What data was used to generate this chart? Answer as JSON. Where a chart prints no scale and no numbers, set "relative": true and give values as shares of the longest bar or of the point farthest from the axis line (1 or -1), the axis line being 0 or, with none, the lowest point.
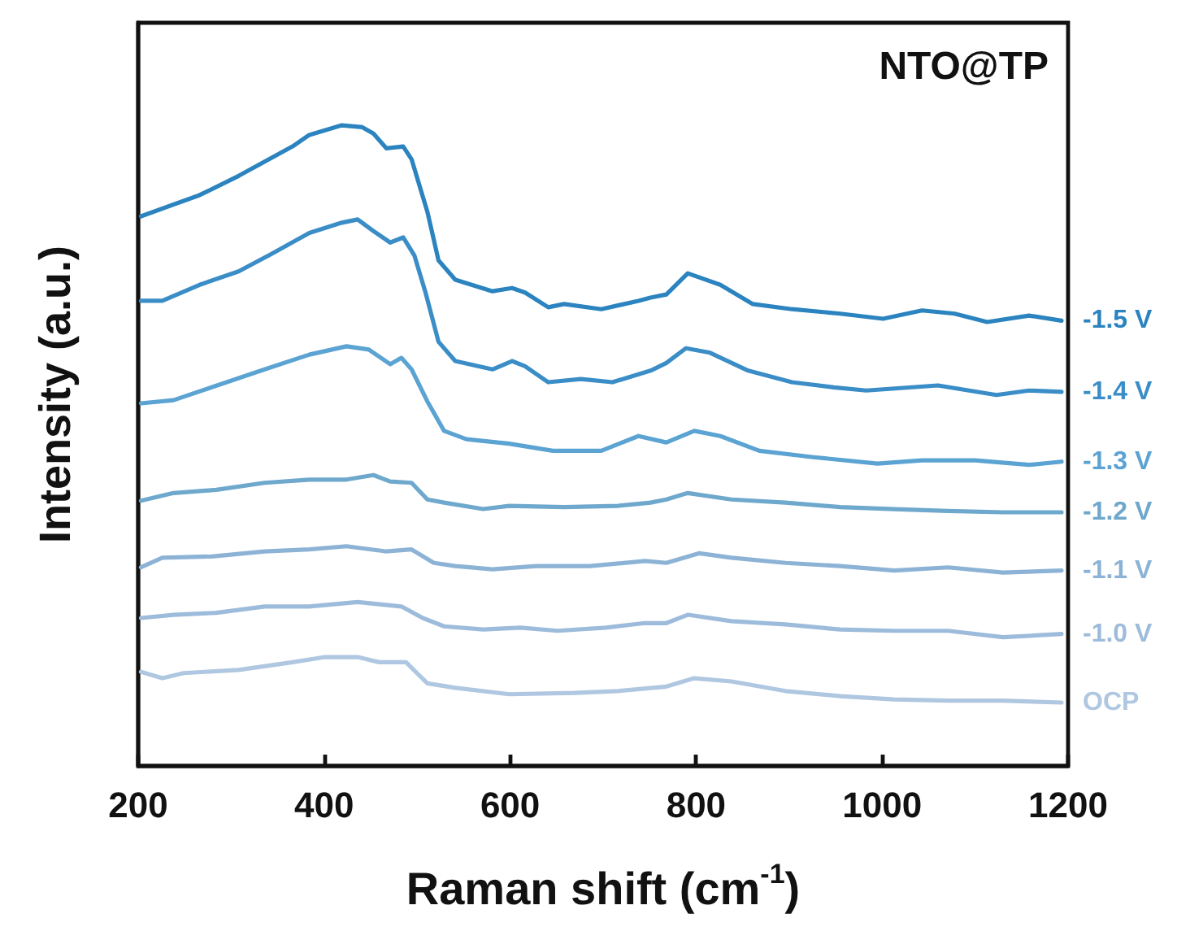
{
  "chart_data": {
    "type": "line",
    "xlabel": "Raman shift (cm$^{-1}$)",
    "ylabel": "Intensity (a.u.)",
    "annotations": [
      "NTO@TP"
    ],
    "relative": true,
    "xlim": [
      200,
      1200
    ],
    "xticks": [
      200,
      400,
      600,
      800,
      1000,
      1200
    ],
    "marker": "none",
    "line_style": "solid",
    "series": [
      {
        "name": "-1.5 V",
        "color": "#2b83bf",
        "x": [
          203,
          266,
          308,
          366,
          384,
          419,
          441,
          453,
          467,
          485,
          494,
          511,
          523,
          541,
          581,
          602,
          616,
          641,
          658,
          698,
          738,
          751,
          768,
          791,
          826,
          861,
          903,
          955,
          1001,
          1043,
          1078,
          1113,
          1158,
          1193
        ],
        "values": [
          0.858,
          0.891,
          0.921,
          0.967,
          0.985,
          1.0,
          0.997,
          0.987,
          0.964,
          0.967,
          0.947,
          0.865,
          0.789,
          0.759,
          0.741,
          0.746,
          0.739,
          0.716,
          0.721,
          0.713,
          0.726,
          0.731,
          0.736,
          0.769,
          0.751,
          0.721,
          0.713,
          0.706,
          0.698,
          0.711,
          0.706,
          0.693,
          0.703,
          0.695
        ]
      },
      {
        "name": "-1.4 V",
        "color": "#3a8dc6",
        "x": [
          203,
          226,
          266,
          308,
          343,
          384,
          419,
          436,
          453,
          471,
          485,
          497,
          509,
          523,
          541,
          581,
          602,
          616,
          641,
          676,
          710,
          751,
          768,
          789,
          815,
          856,
          903,
          948,
          983,
          1060,
          1123,
          1158,
          1193
        ],
        "values": [
          0.726,
          0.726,
          0.751,
          0.772,
          0.799,
          0.832,
          0.848,
          0.853,
          0.835,
          0.817,
          0.825,
          0.797,
          0.739,
          0.662,
          0.632,
          0.619,
          0.632,
          0.624,
          0.599,
          0.604,
          0.599,
          0.617,
          0.629,
          0.652,
          0.645,
          0.617,
          0.599,
          0.591,
          0.586,
          0.594,
          0.579,
          0.586,
          0.584
        ]
      },
      {
        "name": "-1.3 V",
        "color": "#5ba3d2",
        "x": [
          203,
          238,
          279,
          336,
          384,
          424,
          448,
          471,
          483,
          494,
          511,
          529,
          553,
          599,
          646,
          698,
          738,
          768,
          798,
          826,
          868,
          926,
          995,
          1043,
          1100,
          1158,
          1193
        ],
        "values": [
          0.566,
          0.571,
          0.591,
          0.619,
          0.642,
          0.655,
          0.65,
          0.627,
          0.637,
          0.619,
          0.569,
          0.523,
          0.51,
          0.503,
          0.492,
          0.492,
          0.515,
          0.505,
          0.523,
          0.515,
          0.492,
          0.482,
          0.472,
          0.477,
          0.477,
          0.47,
          0.475
        ]
      },
      {
        "name": "-1.2 V",
        "color": "#6ea8cc",
        "x": [
          203,
          238,
          284,
          336,
          384,
          424,
          453,
          471,
          494,
          511,
          529,
          571,
          599,
          658,
          716,
          751,
          768,
          791,
          838,
          896,
          955,
          1013,
          1071,
          1130,
          1193
        ],
        "values": [
          0.414,
          0.426,
          0.431,
          0.442,
          0.447,
          0.447,
          0.454,
          0.444,
          0.442,
          0.416,
          0.411,
          0.401,
          0.406,
          0.404,
          0.406,
          0.411,
          0.416,
          0.426,
          0.416,
          0.411,
          0.404,
          0.401,
          0.398,
          0.396,
          0.396
        ]
      },
      {
        "name": "-1.1 V",
        "color": "#8cb3d5",
        "x": [
          203,
          226,
          279,
          336,
          384,
          424,
          466,
          494,
          518,
          541,
          581,
          628,
          686,
          745,
          768,
          803,
          838,
          896,
          955,
          1013,
          1071,
          1130,
          1193
        ],
        "values": [
          0.31,
          0.325,
          0.327,
          0.335,
          0.338,
          0.343,
          0.335,
          0.338,
          0.317,
          0.312,
          0.307,
          0.312,
          0.312,
          0.32,
          0.317,
          0.332,
          0.325,
          0.317,
          0.312,
          0.305,
          0.31,
          0.302,
          0.305
        ]
      },
      {
        "name": "-1.0 V",
        "color": "#9dbcdb",
        "x": [
          203,
          238,
          284,
          336,
          384,
          436,
          483,
          506,
          529,
          571,
          611,
          651,
          703,
          745,
          768,
          791,
          838,
          896,
          955,
          1013,
          1071,
          1130,
          1193
        ],
        "values": [
          0.231,
          0.236,
          0.239,
          0.249,
          0.249,
          0.256,
          0.249,
          0.231,
          0.218,
          0.213,
          0.216,
          0.211,
          0.216,
          0.223,
          0.223,
          0.236,
          0.226,
          0.221,
          0.213,
          0.211,
          0.211,
          0.201,
          0.206
        ]
      },
      {
        "name": "OCP",
        "color": "#afc7e0",
        "x": [
          203,
          226,
          249,
          308,
          366,
          401,
          436,
          459,
          488,
          511,
          541,
          599,
          669,
          716,
          768,
          798,
          838,
          896,
          955,
          1013,
          1071,
          1130,
          1193
        ],
        "values": [
          0.147,
          0.137,
          0.145,
          0.15,
          0.162,
          0.17,
          0.17,
          0.162,
          0.162,
          0.129,
          0.122,
          0.112,
          0.114,
          0.117,
          0.124,
          0.137,
          0.132,
          0.117,
          0.109,
          0.104,
          0.102,
          0.102,
          0.099
        ]
      }
    ]
  }
}
